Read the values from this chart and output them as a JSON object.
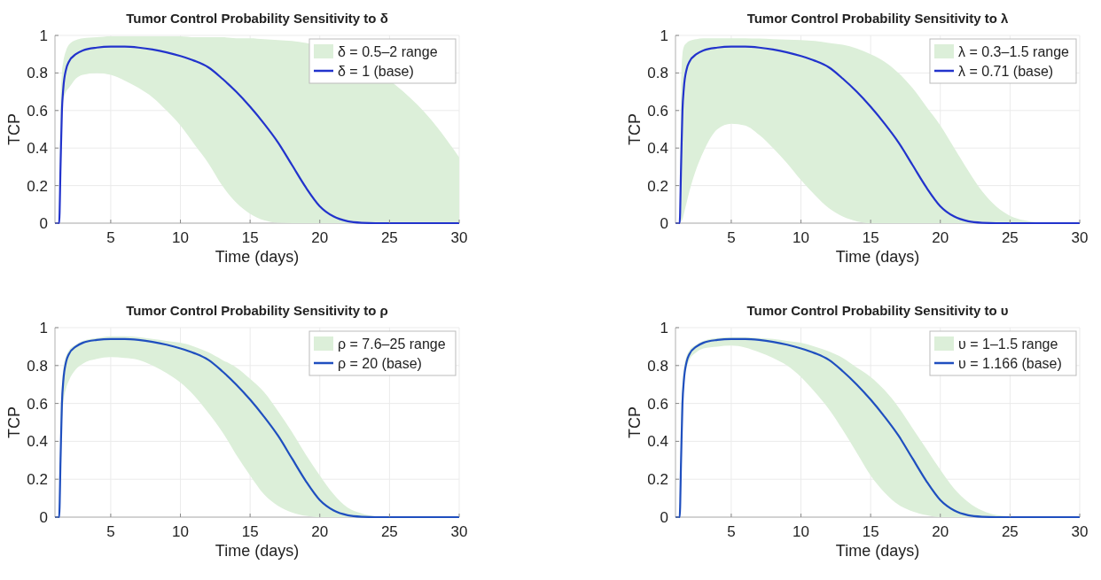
{
  "chart_data": [
    {
      "type": "line",
      "title": "Tumor Control Probability Sensitivity to δ",
      "xlabel": "Time (days)",
      "ylabel": "TCP",
      "xlim": [
        1,
        30
      ],
      "xticks": [
        5,
        10,
        15,
        20,
        25,
        30
      ],
      "ylim": [
        0,
        1
      ],
      "yticks": [
        0,
        0.2,
        0.4,
        0.6,
        0.8,
        1
      ],
      "grid": true,
      "legend": "top right",
      "annotations": [
        "δ = 0.5–2 range"
      ],
      "x": [
        1,
        1.3,
        1.4,
        1.5,
        1.6,
        1.8,
        2,
        2.5,
        3,
        4,
        5,
        6,
        7,
        8,
        9,
        10,
        11,
        12,
        13,
        14,
        15,
        16,
        17,
        18,
        19,
        20,
        21,
        22,
        23,
        24,
        26,
        28,
        30
      ],
      "series": [
        {
          "name": "δ = 1 (base)",
          "color": "#2233cc",
          "values": [
            0,
            0,
            0.3,
            0.6,
            0.72,
            0.82,
            0.86,
            0.9,
            0.92,
            0.935,
            0.94,
            0.94,
            0.935,
            0.925,
            0.91,
            0.89,
            0.865,
            0.83,
            0.77,
            0.7,
            0.62,
            0.53,
            0.43,
            0.31,
            0.19,
            0.09,
            0.035,
            0.01,
            0.002,
            0,
            0,
            0,
            0
          ],
          "lower": [
            0,
            0,
            0.4,
            0.6,
            0.65,
            0.7,
            0.72,
            0.77,
            0.79,
            0.8,
            0.79,
            0.76,
            0.72,
            0.67,
            0.6,
            0.52,
            0.42,
            0.32,
            0.2,
            0.11,
            0.05,
            0.015,
            0.002,
            0,
            0,
            null,
            null,
            null,
            null,
            null,
            0,
            0,
            0
          ],
          "upper": [
            0,
            0,
            0.6,
            0.8,
            0.86,
            0.92,
            0.95,
            0.975,
            0.985,
            0.99,
            0.995,
            0.995,
            0.995,
            0.995,
            0.995,
            0.995,
            0.99,
            0.99,
            0.99,
            0.985,
            0.985,
            0.98,
            0.975,
            0.97,
            0.96,
            null,
            null,
            null,
            null,
            null,
            0.7,
            0.55,
            0.35
          ]
        }
      ]
    },
    {
      "type": "line",
      "title": "Tumor Control Probability Sensitivity to λ",
      "xlabel": "Time (days)",
      "ylabel": "TCP",
      "xlim": [
        1,
        30
      ],
      "xticks": [
        5,
        10,
        15,
        20,
        25,
        30
      ],
      "ylim": [
        0,
        1
      ],
      "yticks": [
        0,
        0.2,
        0.4,
        0.6,
        0.8,
        1
      ],
      "grid": true,
      "legend": "top right",
      "annotations": [
        "λ = 0.3–1.5 range"
      ],
      "x": [
        1,
        1.3,
        1.4,
        1.5,
        1.6,
        1.8,
        2,
        2.5,
        3,
        4,
        5,
        6,
        7,
        8,
        9,
        10,
        11,
        12,
        13,
        14,
        15,
        16,
        17,
        18,
        19,
        20,
        21,
        22,
        23,
        24,
        26,
        28,
        30
      ],
      "series": [
        {
          "name": "λ = 0.71 (base)",
          "color": "#2233cc",
          "values": [
            0,
            0,
            0.3,
            0.6,
            0.72,
            0.82,
            0.86,
            0.9,
            0.92,
            0.935,
            0.94,
            0.94,
            0.935,
            0.925,
            0.91,
            0.89,
            0.865,
            0.83,
            0.77,
            0.7,
            0.62,
            0.53,
            0.43,
            0.31,
            0.19,
            0.09,
            0.035,
            0.01,
            0.002,
            0,
            0,
            0,
            0
          ],
          "lower": [
            0,
            0,
            0.01,
            0.02,
            0.05,
            0.11,
            0.17,
            0.29,
            0.38,
            0.5,
            0.53,
            0.52,
            0.47,
            0.4,
            0.32,
            0.23,
            0.15,
            0.08,
            0.035,
            0.01,
            0,
            0,
            0,
            0,
            0,
            0,
            0,
            0,
            0,
            0,
            0,
            0,
            0
          ],
          "upper": [
            0,
            0,
            0.7,
            0.9,
            0.94,
            0.96,
            0.97,
            0.98,
            0.985,
            0.985,
            0.985,
            0.985,
            0.983,
            0.98,
            0.978,
            0.975,
            0.97,
            0.96,
            0.95,
            0.93,
            0.9,
            0.86,
            0.8,
            0.72,
            0.62,
            0.52,
            0.4,
            0.28,
            0.17,
            0.09,
            0.015,
            0,
            0
          ]
        }
      ]
    },
    {
      "type": "line",
      "title": "Tumor Control Probability Sensitivity to ρ",
      "xlabel": "Time (days)",
      "ylabel": "TCP",
      "xlim": [
        1,
        30
      ],
      "xticks": [
        5,
        10,
        15,
        20,
        25,
        30
      ],
      "ylim": [
        0,
        1
      ],
      "yticks": [
        0,
        0.2,
        0.4,
        0.6,
        0.8,
        1
      ],
      "grid": true,
      "legend": "top right",
      "annotations": [
        "ρ = 7.6–25 range"
      ],
      "x": [
        1,
        1.3,
        1.4,
        1.5,
        1.6,
        1.8,
        2,
        2.5,
        3,
        4,
        5,
        6,
        7,
        8,
        9,
        10,
        11,
        12,
        13,
        14,
        15,
        16,
        17,
        18,
        19,
        20,
        21,
        22,
        23,
        24,
        26,
        28,
        30
      ],
      "series": [
        {
          "name": "ρ = 20 (base)",
          "color": "#1f4fbf",
          "values": [
            0,
            0,
            0.3,
            0.6,
            0.72,
            0.82,
            0.86,
            0.9,
            0.92,
            0.935,
            0.94,
            0.94,
            0.935,
            0.925,
            0.91,
            0.89,
            0.865,
            0.83,
            0.77,
            0.7,
            0.62,
            0.53,
            0.43,
            0.31,
            0.19,
            0.09,
            0.035,
            0.01,
            0.002,
            0,
            0,
            0,
            0
          ],
          "lower": [
            0,
            0,
            0.35,
            0.5,
            0.6,
            0.68,
            0.72,
            0.78,
            0.81,
            0.835,
            0.845,
            0.84,
            0.83,
            0.8,
            0.76,
            0.71,
            0.64,
            0.55,
            0.45,
            0.33,
            0.22,
            0.12,
            0.06,
            0.025,
            0.007,
            0,
            0,
            0,
            0,
            0,
            0,
            0,
            0
          ],
          "upper": [
            0,
            0,
            0.5,
            0.7,
            0.78,
            0.85,
            0.88,
            0.91,
            0.93,
            0.945,
            0.955,
            0.955,
            0.95,
            0.94,
            0.93,
            0.92,
            0.9,
            0.87,
            0.83,
            0.79,
            0.73,
            0.66,
            0.56,
            0.45,
            0.33,
            0.22,
            0.12,
            0.05,
            0.02,
            0.005,
            0,
            0,
            0
          ]
        }
      ]
    },
    {
      "type": "line",
      "title": "Tumor Control Probability Sensitivity to υ",
      "xlabel": "Time (days)",
      "ylabel": "TCP",
      "xlim": [
        1,
        30
      ],
      "xticks": [
        5,
        10,
        15,
        20,
        25,
        30
      ],
      "ylim": [
        0,
        1
      ],
      "yticks": [
        0,
        0.2,
        0.4,
        0.6,
        0.8,
        1
      ],
      "grid": true,
      "legend": "top right",
      "annotations": [
        "υ = 1–1.5 range"
      ],
      "x": [
        1,
        1.3,
        1.4,
        1.5,
        1.6,
        1.8,
        2,
        2.5,
        3,
        4,
        5,
        6,
        7,
        8,
        9,
        10,
        11,
        12,
        13,
        14,
        15,
        16,
        17,
        18,
        19,
        20,
        21,
        22,
        23,
        24,
        26,
        28,
        30
      ],
      "series": [
        {
          "name": "υ = 1.166 (base)",
          "color": "#1f4fbf",
          "values": [
            0,
            0,
            0.3,
            0.6,
            0.72,
            0.82,
            0.86,
            0.9,
            0.92,
            0.935,
            0.94,
            0.94,
            0.935,
            0.925,
            0.91,
            0.89,
            0.865,
            0.83,
            0.77,
            0.7,
            0.62,
            0.53,
            0.43,
            0.31,
            0.19,
            0.09,
            0.035,
            0.01,
            0.002,
            0,
            0,
            0,
            0
          ],
          "lower": [
            0,
            0,
            0.4,
            0.6,
            0.7,
            0.79,
            0.83,
            0.87,
            0.89,
            0.9,
            0.905,
            0.895,
            0.87,
            0.84,
            0.8,
            0.74,
            0.66,
            0.57,
            0.46,
            0.34,
            0.22,
            0.13,
            0.065,
            0.03,
            0.01,
            0,
            0,
            0,
            0,
            0,
            0,
            0,
            0
          ],
          "upper": [
            0,
            0,
            0.5,
            0.7,
            0.78,
            0.85,
            0.88,
            0.91,
            0.93,
            0.945,
            0.95,
            0.95,
            0.945,
            0.94,
            0.93,
            0.92,
            0.9,
            0.875,
            0.84,
            0.79,
            0.74,
            0.67,
            0.58,
            0.47,
            0.36,
            0.25,
            0.15,
            0.08,
            0.035,
            0.012,
            0,
            0,
            0
          ]
        }
      ]
    }
  ]
}
